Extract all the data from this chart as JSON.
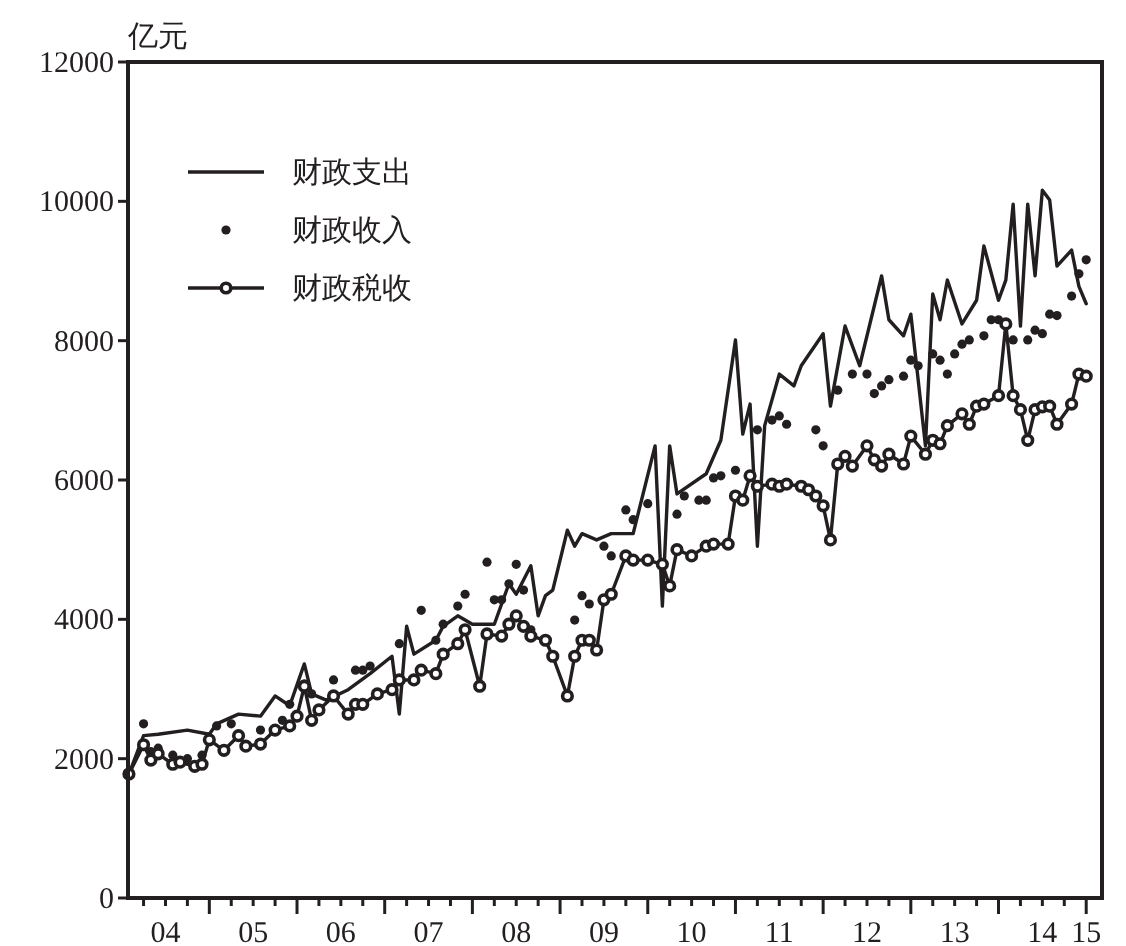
{
  "chart_data": {
    "type": "line",
    "ylabel": "亿元",
    "xlim": [
      "2004-01-28",
      "2015-03-06"
    ],
    "ylim": [
      0,
      12000
    ],
    "yticks": [
      0,
      2000,
      4000,
      6000,
      8000,
      10000,
      12000
    ],
    "xticks": [
      {
        "value": "2004-04-01",
        "label": null
      },
      {
        "value": "2004-07-01",
        "label": "04"
      },
      {
        "value": "2004-10-01",
        "label": null
      },
      {
        "value": "2005-01-01",
        "label": null
      },
      {
        "value": "2005-04-01",
        "label": null
      },
      {
        "value": "2005-07-01",
        "label": "05"
      },
      {
        "value": "2005-10-01",
        "label": null
      },
      {
        "value": "2006-01-01",
        "label": null
      },
      {
        "value": "2006-04-01",
        "label": null
      },
      {
        "value": "2006-07-01",
        "label": "06"
      },
      {
        "value": "2006-10-01",
        "label": null
      },
      {
        "value": "2007-01-01",
        "label": null
      },
      {
        "value": "2007-04-01",
        "label": null
      },
      {
        "value": "2007-07-01",
        "label": "07"
      },
      {
        "value": "2007-10-01",
        "label": null
      },
      {
        "value": "2008-01-01",
        "label": null
      },
      {
        "value": "2008-04-01",
        "label": null
      },
      {
        "value": "2008-07-01",
        "label": "08"
      },
      {
        "value": "2008-10-01",
        "label": null
      },
      {
        "value": "2009-01-01",
        "label": null
      },
      {
        "value": "2009-04-01",
        "label": null
      },
      {
        "value": "2009-07-01",
        "label": "09"
      },
      {
        "value": "2009-10-01",
        "label": null
      },
      {
        "value": "2010-01-01",
        "label": null
      },
      {
        "value": "2010-04-01",
        "label": null
      },
      {
        "value": "2010-07-01",
        "label": "10"
      },
      {
        "value": "2010-10-01",
        "label": null
      },
      {
        "value": "2011-01-01",
        "label": null
      },
      {
        "value": "2011-04-01",
        "label": null
      },
      {
        "value": "2011-07-01",
        "label": "11"
      },
      {
        "value": "2011-10-01",
        "label": null
      },
      {
        "value": "2012-01-01",
        "label": null
      },
      {
        "value": "2012-04-01",
        "label": null
      },
      {
        "value": "2012-07-01",
        "label": "12"
      },
      {
        "value": "2012-10-01",
        "label": null
      },
      {
        "value": "2013-01-01",
        "label": null
      },
      {
        "value": "2013-04-01",
        "label": null
      },
      {
        "value": "2013-07-01",
        "label": "13"
      },
      {
        "value": "2013-10-01",
        "label": null
      },
      {
        "value": "2014-01-01",
        "label": null
      },
      {
        "value": "2014-04-01",
        "label": null
      },
      {
        "value": "2014-07-01",
        "label": "14"
      },
      {
        "value": "2014-10-01",
        "label": null
      },
      {
        "value": "2015-01-01",
        "label": "15"
      }
    ],
    "grid": false,
    "legend": "top left",
    "series": [
      {
        "name": "财政支出",
        "type": "line",
        "marker": "none",
        "color": "#231f20",
        "x": [
          "2004-02",
          "2004-04",
          "2004-06",
          "2004-10",
          "2005-01",
          "2005-02",
          "2005-05",
          "2005-08",
          "2005-10",
          "2005-12",
          "2006-02",
          "2006-03",
          "2006-05",
          "2006-08",
          "2006-11",
          "2007-02",
          "2007-03",
          "2007-04",
          "2007-05",
          "2007-08",
          "2007-09",
          "2007-11",
          "2008-01",
          "2008-04",
          "2008-06",
          "2008-07",
          "2008-09",
          "2008-10",
          "2008-11",
          "2008-12",
          "2009-02",
          "2009-03",
          "2009-04",
          "2009-06",
          "2009-08",
          "2009-11",
          "2010-02",
          "2010-03",
          "2010-04",
          "2010-05",
          "2010-09",
          "2010-11",
          "2011-01",
          "2011-02",
          "2011-03",
          "2011-04",
          "2011-05",
          "2011-07",
          "2011-09",
          "2011-10",
          "2012-01",
          "2012-02",
          "2012-04",
          "2012-06",
          "2012-09",
          "2012-10",
          "2012-12",
          "2013-01",
          "2013-02",
          "2013-03",
          "2013-04",
          "2013-05",
          "2013-06",
          "2013-08",
          "2013-10",
          "2013-11",
          "2014-01",
          "2014-02",
          "2014-03",
          "2014-04",
          "2014-05",
          "2014-06",
          "2014-07",
          "2014-08",
          "2014-09",
          "2014-11",
          "2014-12",
          "2015-01"
        ],
        "values": [
          1780,
          2330,
          2350,
          2410,
          2350,
          2500,
          2640,
          2610,
          2900,
          2760,
          3360,
          2930,
          2840,
          2990,
          3220,
          3470,
          2640,
          3900,
          3500,
          3700,
          3900,
          4050,
          3930,
          3930,
          4510,
          4360,
          4770,
          4050,
          4340,
          4420,
          5280,
          5050,
          5230,
          5140,
          5230,
          5230,
          6490,
          4190,
          6490,
          5800,
          6090,
          6570,
          8010,
          6660,
          7090,
          5050,
          6780,
          7520,
          7350,
          7640,
          8100,
          7060,
          8210,
          7640,
          8930,
          8300,
          8070,
          8380,
          7440,
          6490,
          8670,
          8300,
          8870,
          8240,
          8580,
          9360,
          8580,
          8870,
          9960,
          8210,
          9960,
          8930,
          10160,
          10020,
          9070,
          9300,
          8780,
          8530
        ]
      },
      {
        "name": "财政收入",
        "type": "scatter",
        "marker": "circle",
        "color": "#231f20",
        "x": [
          "2004-04",
          "2004-05",
          "2004-06",
          "2004-08",
          "2004-10",
          "2004-12",
          "2005-02",
          "2005-04",
          "2005-08",
          "2005-11",
          "2005-12",
          "2006-02",
          "2006-03",
          "2006-06",
          "2006-09",
          "2006-10",
          "2006-11",
          "2007-03",
          "2007-06",
          "2007-08",
          "2007-09",
          "2007-11",
          "2007-12",
          "2008-03",
          "2008-04",
          "2008-05",
          "2008-06",
          "2008-07",
          "2008-08",
          "2008-09",
          "2009-03",
          "2009-04",
          "2009-05",
          "2009-07",
          "2009-08",
          "2009-10",
          "2009-11",
          "2010-01",
          "2010-05",
          "2010-06",
          "2010-08",
          "2010-09",
          "2010-10",
          "2010-11",
          "2011-01",
          "2011-04",
          "2011-06",
          "2011-07",
          "2011-08",
          "2011-12",
          "2012-01",
          "2012-03",
          "2012-05",
          "2012-07",
          "2012-08",
          "2012-09",
          "2012-10",
          "2012-12",
          "2013-01",
          "2013-02",
          "2013-04",
          "2013-05",
          "2013-06",
          "2013-07",
          "2013-08",
          "2013-09",
          "2013-11",
          "2013-12",
          "2014-01",
          "2014-02",
          "2014-03",
          "2014-05",
          "2014-06",
          "2014-07",
          "2014-08",
          "2014-09",
          "2014-11",
          "2014-12",
          "2015-01"
        ],
        "values": [
          2500,
          2100,
          2150,
          2050,
          2000,
          2050,
          2470,
          2500,
          2410,
          2550,
          2780,
          3070,
          2930,
          3130,
          3270,
          3270,
          3330,
          3650,
          4130,
          3700,
          3930,
          4190,
          4360,
          4820,
          4280,
          4280,
          4510,
          4790,
          4420,
          3850,
          3990,
          4340,
          4220,
          5050,
          4910,
          5570,
          5430,
          5660,
          5510,
          5770,
          5710,
          5710,
          6030,
          6060,
          6140,
          6720,
          6860,
          6920,
          6800,
          6720,
          6490,
          7290,
          7520,
          7520,
          7240,
          7350,
          7440,
          7490,
          7720,
          7640,
          7810,
          7720,
          7520,
          7810,
          7950,
          8010,
          8070,
          8300,
          8300,
          8240,
          8010,
          8010,
          8150,
          8100,
          8380,
          8360,
          8640,
          8960,
          9160
        ]
      },
      {
        "name": "财政税收",
        "type": "line",
        "marker": "circle",
        "color": "#231f20",
        "x": [
          "2004-02",
          "2004-04",
          "2004-05",
          "2004-06",
          "2004-08",
          "2004-09",
          "2004-11",
          "2004-12",
          "2005-01",
          "2005-03",
          "2005-05",
          "2005-06",
          "2005-08",
          "2005-10",
          "2005-12",
          "2006-01",
          "2006-02",
          "2006-03",
          "2006-04",
          "2006-06",
          "2006-08",
          "2006-09",
          "2006-10",
          "2006-12",
          "2007-02",
          "2007-03",
          "2007-05",
          "2007-06",
          "2007-08",
          "2007-09",
          "2007-11",
          "2007-12",
          "2008-02",
          "2008-03",
          "2008-05",
          "2008-06",
          "2008-07",
          "2008-08",
          "2008-09",
          "2008-11",
          "2008-12",
          "2009-02",
          "2009-03",
          "2009-04",
          "2009-05",
          "2009-06",
          "2009-07",
          "2009-08",
          "2009-10",
          "2009-11",
          "2010-01",
          "2010-03",
          "2010-04",
          "2010-05",
          "2010-07",
          "2010-09",
          "2010-10",
          "2010-12",
          "2011-01",
          "2011-02",
          "2011-03",
          "2011-04",
          "2011-06",
          "2011-07",
          "2011-08",
          "2011-10",
          "2011-11",
          "2011-12",
          "2012-01",
          "2012-02",
          "2012-03",
          "2012-04",
          "2012-05",
          "2012-07",
          "2012-08",
          "2012-09",
          "2012-10",
          "2012-12",
          "2013-01",
          "2013-03",
          "2013-04",
          "2013-05",
          "2013-06",
          "2013-08",
          "2013-09",
          "2013-10",
          "2013-11",
          "2014-01",
          "2014-02",
          "2014-03",
          "2014-04",
          "2014-05",
          "2014-06",
          "2014-07",
          "2014-08",
          "2014-09",
          "2014-11",
          "2014-12",
          "2015-01"
        ],
        "values": [
          1780,
          2200,
          1980,
          2070,
          1920,
          1950,
          1890,
          1920,
          2270,
          2120,
          2330,
          2180,
          2210,
          2410,
          2470,
          2610,
          3040,
          2550,
          2700,
          2900,
          2640,
          2780,
          2780,
          2930,
          2990,
          3130,
          3130,
          3270,
          3220,
          3500,
          3650,
          3850,
          3040,
          3790,
          3760,
          3930,
          4050,
          3900,
          3760,
          3700,
          3470,
          2900,
          3470,
          3700,
          3700,
          3560,
          4280,
          4360,
          4910,
          4850,
          4850,
          4790,
          4480,
          5000,
          4910,
          5050,
          5080,
          5080,
          5770,
          5710,
          6060,
          5910,
          5940,
          5910,
          5940,
          5910,
          5860,
          5770,
          5630,
          5140,
          6230,
          6340,
          6200,
          6490,
          6290,
          6200,
          6370,
          6230,
          6630,
          6370,
          6570,
          6520,
          6780,
          6950,
          6800,
          7060,
          7090,
          7210,
          8240,
          7210,
          7010,
          6570,
          7010,
          7050,
          7060,
          6800,
          7090,
          7520,
          7490
        ]
      }
    ]
  }
}
